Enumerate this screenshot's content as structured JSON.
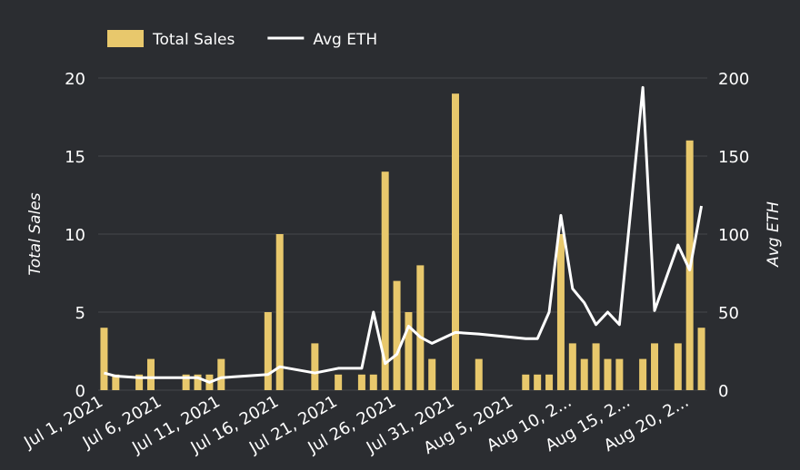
{
  "chart_data": {
    "type": "bar-line",
    "x": [
      "Jul 1, 2021",
      "Jul 2, 2021",
      "Jul 4, 2021",
      "Jul 5, 2021",
      "Jul 8, 2021",
      "Jul 9, 2021",
      "Jul 10, 2021",
      "Jul 11, 2021",
      "Jul 15, 2021",
      "Jul 16, 2021",
      "Jul 19, 2021",
      "Jul 21, 2021",
      "Jul 23, 2021",
      "Jul 24, 2021",
      "Jul 25, 2021",
      "Jul 26, 2021",
      "Jul 27, 2021",
      "Jul 28, 2021",
      "Jul 29, 2021",
      "Jul 31, 2021",
      "Aug 2, 2021",
      "Aug 6, 2021",
      "Aug 7, 2021",
      "Aug 8, 2021",
      "Aug 9, 2021",
      "Aug 10, 2021",
      "Aug 11, 2021",
      "Aug 12, 2021",
      "Aug 13, 2021",
      "Aug 14, 2021",
      "Aug 16, 2021",
      "Aug 17, 2021",
      "Aug 19, 2021",
      "Aug 20, 2021",
      "Aug 21, 2021"
    ],
    "xlim": [
      "Jul 1, 2021",
      "Aug 21, 2021"
    ],
    "xticks": [
      "Jul 1, 2021",
      "Jul 6, 2021",
      "Jul 11, 2021",
      "Jul 16, 2021",
      "Jul 21, 2021",
      "Jul 26, 2021",
      "Jul 31, 2021",
      "Aug 5, 2021",
      {
        "value": "Aug 10, 2021",
        "label": "Aug 10, 2..."
      },
      {
        "value": "Aug 15, 2021",
        "label": "Aug 15, 2..."
      },
      {
        "value": "Aug 20, 2021",
        "label": "Aug 20, 2..."
      }
    ],
    "ylabel": "Total Sales",
    "y2label": "Avg ETH",
    "ylim": [
      0,
      20
    ],
    "yticks": [
      0,
      5,
      10,
      15,
      20
    ],
    "y2lim": [
      0,
      200
    ],
    "y2ticks": [
      0,
      50,
      100,
      150,
      200
    ],
    "grid": true,
    "legend": "top",
    "series": [
      {
        "name": "Total Sales",
        "type": "bar",
        "color": "#e8c86c",
        "values": [
          4,
          1,
          1,
          2,
          1,
          1,
          1,
          2,
          5,
          10,
          3,
          1,
          1,
          1,
          14,
          7,
          5,
          8,
          2,
          19,
          2,
          1,
          1,
          1,
          10,
          3,
          2,
          3,
          2,
          2,
          2,
          3,
          3,
          16,
          4
        ]
      },
      {
        "name": "Avg ETH",
        "type": "line",
        "axis": "y2",
        "color": "#ffffff",
        "values": [
          11,
          9,
          8,
          8,
          8,
          8,
          5,
          8,
          10,
          15,
          11,
          14,
          14,
          50,
          17,
          23,
          41,
          34,
          30,
          37,
          36,
          33,
          33,
          50,
          112,
          65,
          56,
          42,
          50,
          42,
          194,
          51,
          93,
          77,
          118
        ]
      }
    ]
  }
}
